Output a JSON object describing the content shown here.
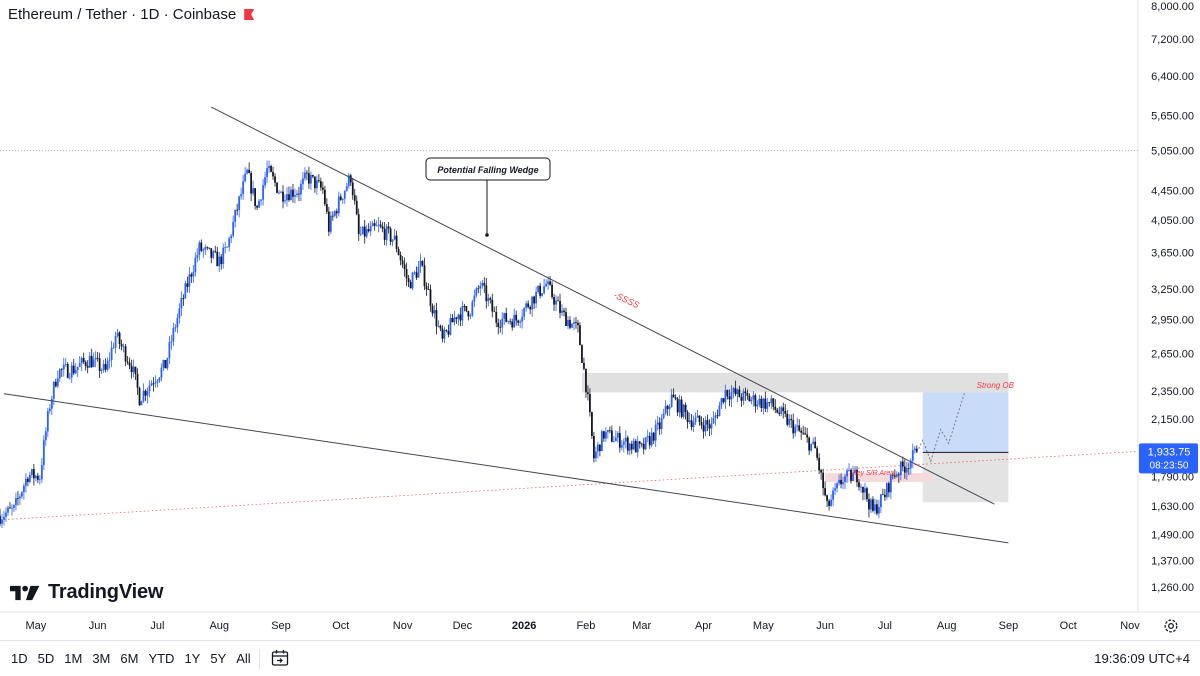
{
  "header": {
    "symbol_title": "Ethereum / Tether · 1D · Coinbase"
  },
  "brand": {
    "name": "TradingView"
  },
  "price_axis": {
    "ticks": [
      "8,000.00",
      "7,200.00",
      "6,400.00",
      "5,650.00",
      "5,050.00",
      "4,450.00",
      "4,050.00",
      "3,650.00",
      "3,250.00",
      "2,950.00",
      "2,650.00",
      "2,350.00",
      "2,150.00",
      "1,790.00",
      "1,630.00",
      "1,490.00",
      "1,370.00",
      "1,260.00"
    ],
    "current_price": "1,933.75",
    "countdown": "08:23:50",
    "current_price_color": "#2962ff"
  },
  "time_axis": {
    "ticks": [
      "May",
      "Jun",
      "Jul",
      "Aug",
      "Sep",
      "Oct",
      "Nov",
      "Dec",
      "2026",
      "Feb",
      "Mar",
      "Apr",
      "May",
      "Jun",
      "Jul",
      "Aug",
      "Sep",
      "Oct",
      "Nov"
    ]
  },
  "annotations": {
    "falling_wedge": "Potential Falling Wedge",
    "ssss": "-SSSS",
    "strong_ob": "Strong OB",
    "key_sr": "Key S/R Area"
  },
  "bottom_bar": {
    "ranges": [
      "1D",
      "5D",
      "1M",
      "3M",
      "6M",
      "YTD",
      "1Y",
      "5Y",
      "All"
    ],
    "clock": "19:36:09 UTC+4"
  },
  "colors": {
    "bull": "#2962ff",
    "bear": "#131722",
    "annotation_red": "#f23645",
    "ob_zone": "#e0e0e0",
    "target_zone": "#c8dcfa",
    "stop_zone": "#e3e3e3"
  },
  "chart_data": {
    "type": "candlestick",
    "symbol": "ETH/USDT",
    "interval": "1D",
    "exchange": "Coinbase",
    "y_scale": "log",
    "ylim": [
      1260,
      8000
    ],
    "x_range": [
      "2025-04-13",
      "2026-11-05"
    ],
    "grid": false,
    "price_path": [
      {
        "date": "2025-04-13",
        "price": 1580
      },
      {
        "date": "2025-04-20",
        "price": 1610
      },
      {
        "date": "2025-04-27",
        "price": 1800
      },
      {
        "date": "2025-05-03",
        "price": 1790
      },
      {
        "date": "2025-05-08",
        "price": 2250
      },
      {
        "date": "2025-05-12",
        "price": 2500
      },
      {
        "date": "2025-05-20",
        "price": 2520
      },
      {
        "date": "2025-05-28",
        "price": 2600
      },
      {
        "date": "2025-06-05",
        "price": 2500
      },
      {
        "date": "2025-06-10",
        "price": 2800
      },
      {
        "date": "2025-06-18",
        "price": 2550
      },
      {
        "date": "2025-06-22",
        "price": 2300
      },
      {
        "date": "2025-06-28",
        "price": 2420
      },
      {
        "date": "2025-07-05",
        "price": 2550
      },
      {
        "date": "2025-07-10",
        "price": 2900
      },
      {
        "date": "2025-07-16",
        "price": 3300
      },
      {
        "date": "2025-07-22",
        "price": 3700
      },
      {
        "date": "2025-08-01",
        "price": 3550
      },
      {
        "date": "2025-08-05",
        "price": 3700
      },
      {
        "date": "2025-08-11",
        "price": 4300
      },
      {
        "date": "2025-08-15",
        "price": 4700
      },
      {
        "date": "2025-08-20",
        "price": 4200
      },
      {
        "date": "2025-08-25",
        "price": 4750
      },
      {
        "date": "2025-09-01",
        "price": 4400
      },
      {
        "date": "2025-09-10",
        "price": 4450
      },
      {
        "date": "2025-09-14",
        "price": 4650
      },
      {
        "date": "2025-09-22",
        "price": 4450
      },
      {
        "date": "2025-09-25",
        "price": 3950
      },
      {
        "date": "2025-10-01",
        "price": 4350
      },
      {
        "date": "2025-10-06",
        "price": 4650
      },
      {
        "date": "2025-10-10",
        "price": 3850
      },
      {
        "date": "2025-10-20",
        "price": 3950
      },
      {
        "date": "2025-10-28",
        "price": 3800
      },
      {
        "date": "2025-11-04",
        "price": 3300
      },
      {
        "date": "2025-11-10",
        "price": 3500
      },
      {
        "date": "2025-11-17",
        "price": 3000
      },
      {
        "date": "2025-11-21",
        "price": 2750
      },
      {
        "date": "2025-11-28",
        "price": 3000
      },
      {
        "date": "2025-12-05",
        "price": 3050
      },
      {
        "date": "2025-12-10",
        "price": 3300
      },
      {
        "date": "2025-12-18",
        "price": 2950
      },
      {
        "date": "2025-12-28",
        "price": 2950
      },
      {
        "date": "2026-01-05",
        "price": 3150
      },
      {
        "date": "2026-01-12",
        "price": 3300
      },
      {
        "date": "2026-01-20",
        "price": 3000
      },
      {
        "date": "2026-01-28",
        "price": 2850
      },
      {
        "date": "2026-02-01",
        "price": 2400
      },
      {
        "date": "2026-02-05",
        "price": 1900
      },
      {
        "date": "2026-02-10",
        "price": 2050
      },
      {
        "date": "2026-02-20",
        "price": 2000
      },
      {
        "date": "2026-03-01",
        "price": 1950
      },
      {
        "date": "2026-03-10",
        "price": 2100
      },
      {
        "date": "2026-03-16",
        "price": 2300
      },
      {
        "date": "2026-03-25",
        "price": 2150
      },
      {
        "date": "2026-04-05",
        "price": 2100
      },
      {
        "date": "2026-04-12",
        "price": 2350
      },
      {
        "date": "2026-04-22",
        "price": 2300
      },
      {
        "date": "2026-05-05",
        "price": 2250
      },
      {
        "date": "2026-05-12",
        "price": 2150
      },
      {
        "date": "2026-05-20",
        "price": 2050
      },
      {
        "date": "2026-05-27",
        "price": 1950
      },
      {
        "date": "2026-06-02",
        "price": 1620
      },
      {
        "date": "2026-06-10",
        "price": 1780
      },
      {
        "date": "2026-06-17",
        "price": 1800
      },
      {
        "date": "2026-06-25",
        "price": 1600
      },
      {
        "date": "2026-07-01",
        "price": 1690
      },
      {
        "date": "2026-07-05",
        "price": 1800
      },
      {
        "date": "2026-07-12",
        "price": 1860
      },
      {
        "date": "2026-07-17",
        "price": 1933.75
      }
    ],
    "drawings": {
      "upper_trendline": [
        {
          "date": "2025-07-28",
          "price": 5800
        },
        {
          "date": "2026-08-25",
          "price": 1640
        }
      ],
      "lower_trendline": [
        {
          "date": "2025-04-15",
          "price": 2330
        },
        {
          "date": "2026-09-01",
          "price": 1450
        }
      ],
      "horizontal_level": 5050,
      "strong_ob_zone": {
        "from": "2026-01-30",
        "to": "2026-09-01",
        "low": 2340,
        "high": 2490
      },
      "key_sr_zone": {
        "from": "2026-06-01",
        "to": "2026-07-25",
        "low": 1760,
        "high": 1810
      },
      "target_zone": {
        "from": "2026-07-20",
        "to": "2026-09-01",
        "low": 1933.75,
        "high": 2340
      },
      "stop_zone": {
        "from": "2026-07-20",
        "to": "2026-09-01",
        "low": 1650,
        "high": 1933.75
      },
      "projection_path": [
        {
          "date": "2026-07-17",
          "price": 1933.75
        },
        {
          "date": "2026-07-20",
          "price": 2010
        },
        {
          "date": "2026-07-24",
          "price": 1880
        },
        {
          "date": "2026-07-29",
          "price": 2080
        },
        {
          "date": "2026-08-02",
          "price": 1990
        },
        {
          "date": "2026-08-10",
          "price": 2340
        }
      ]
    }
  }
}
